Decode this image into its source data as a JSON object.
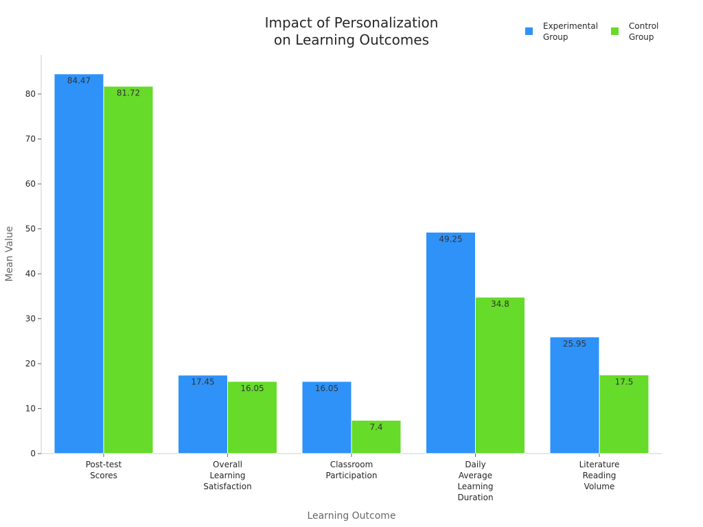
{
  "chart_data": {
    "type": "bar",
    "title": [
      "Impact of Personalization",
      "on Learning Outcomes"
    ],
    "xlabel": "Learning Outcome",
    "ylabel": "Mean Value",
    "categories": [
      [
        "Post-test",
        "Scores"
      ],
      [
        "Overall",
        "Learning",
        "Satisfaction"
      ],
      [
        "Classroom",
        "Participation"
      ],
      [
        "Daily",
        "Average",
        "Learning",
        "Duration"
      ],
      [
        "Literature",
        "Reading",
        "Volume"
      ]
    ],
    "series": [
      {
        "name": [
          "Experimental",
          "Group"
        ],
        "color": "#2e92f8",
        "values": [
          84.47,
          17.45,
          16.05,
          49.25,
          25.95
        ],
        "labels": [
          "84.47",
          "17.45",
          "16.05",
          "49.25",
          "25.95"
        ]
      },
      {
        "name": [
          "Control",
          "Group"
        ],
        "color": "#66db2a",
        "values": [
          81.72,
          16.05,
          7.4,
          34.8,
          17.5
        ],
        "labels": [
          "81.72",
          "16.05",
          "7.4",
          "34.8",
          "17.5"
        ]
      }
    ],
    "ylim": [
      0,
      88.7
    ],
    "yticks": [
      0,
      10,
      20,
      30,
      40,
      50,
      60,
      70,
      80
    ],
    "grid": false,
    "legend_position": "top-right"
  }
}
